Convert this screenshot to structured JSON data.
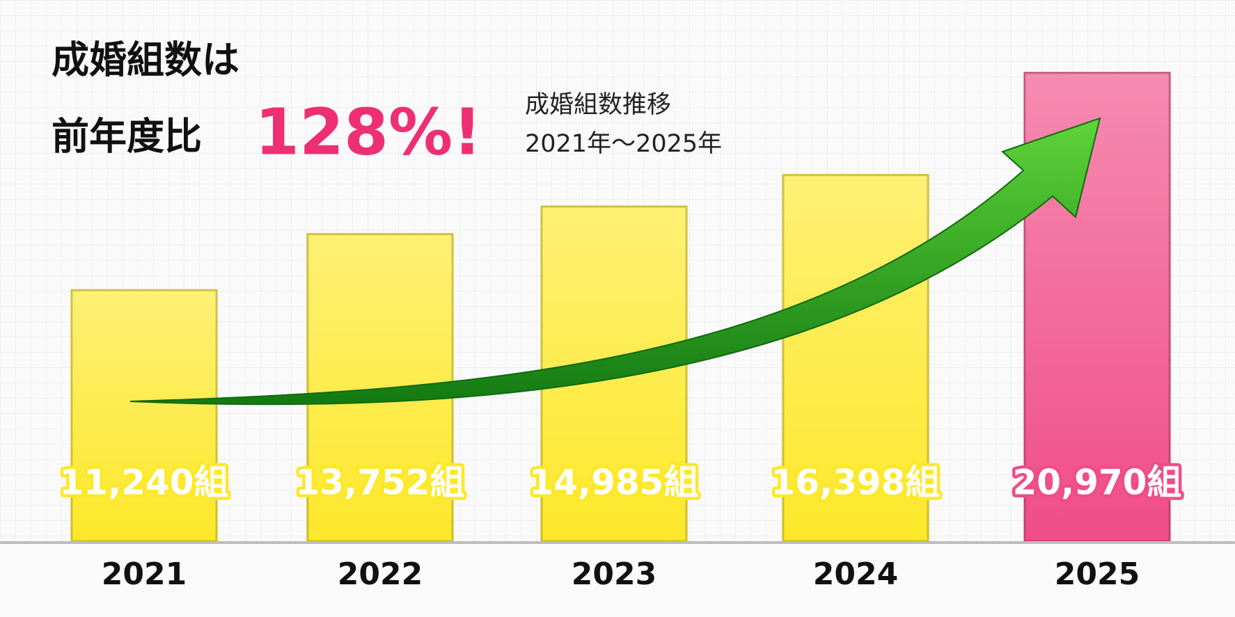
{
  "chart_data": {
    "type": "bar",
    "headline": [
      "成婚組数は",
      "前年度比",
      "128%!"
    ],
    "subtitle": [
      "成婚組数推移",
      "2021年～2025年"
    ],
    "categories": [
      "2021",
      "2022",
      "2023",
      "2024",
      "2025"
    ],
    "values": [
      11240,
      13752,
      14985,
      16398,
      20970
    ],
    "value_labels": [
      "11,240組",
      "13,752組",
      "14,985組",
      "16,398組",
      "20,970組"
    ],
    "colors": [
      "#fde82a",
      "#fde82a",
      "#fde82a",
      "#fde82a",
      "#f04d86"
    ],
    "ylim": [
      0,
      21000
    ]
  }
}
